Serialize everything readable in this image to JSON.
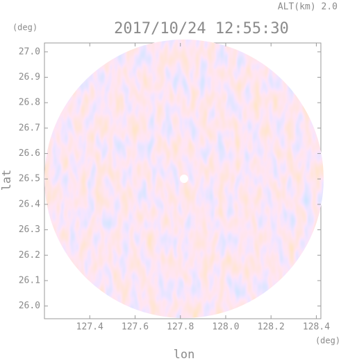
{
  "chart_data": {
    "type": "ppi",
    "title": "2017/10/24 12:55:30",
    "subtitle": "ALT(km) 2.0",
    "x_label": "lon",
    "x_unit": "(deg)",
    "y_label": "lat",
    "y_unit": "(deg)",
    "xlim": [
      127.2,
      128.42
    ],
    "ylim": [
      25.95,
      27.035
    ],
    "xticks": [
      127.4,
      127.6,
      127.8,
      {
        "value": 128.0,
        "label": "128.0"
      },
      128.2,
      128.4
    ],
    "yticks": [
      {
        "value": 26.0,
        "label": "26.0"
      },
      26.1,
      26.2,
      26.3,
      26.4,
      26.5,
      26.6,
      26.7,
      26.8,
      26.9,
      {
        "value": 27.0,
        "label": "27.0"
      }
    ]
  }
}
